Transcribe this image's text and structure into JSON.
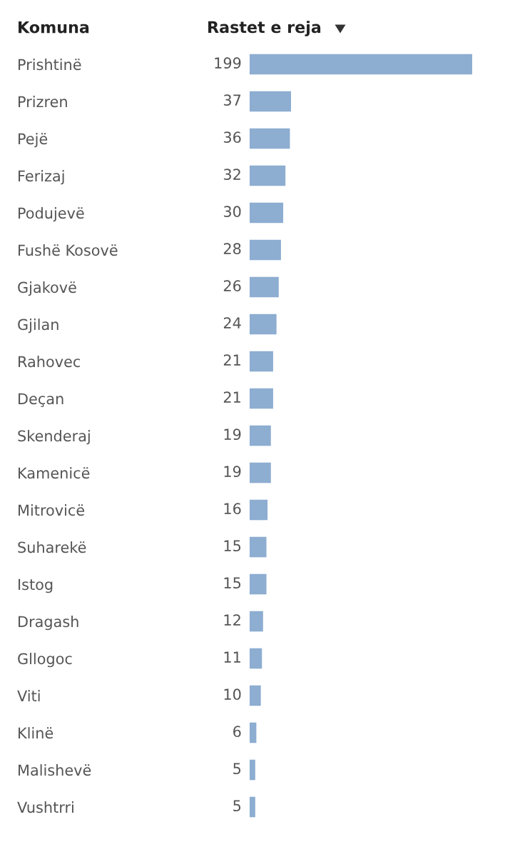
{
  "chart_data": {
    "type": "bar",
    "orientation": "horizontal",
    "ylabel": "Komuna",
    "xlabel": "Rastet e reja",
    "categories": [
      "Prishtinë",
      "Prizren",
      "Pejë",
      "Ferizaj",
      "Podujevë",
      "Fushë Kosovë",
      "Gjakovë",
      "Gjilan",
      "Rahovec",
      "Deçan",
      "Skenderaj",
      "Kamenicë",
      "Mitrovicë",
      "Suharekë",
      "Istog",
      "Dragash",
      "Gllogoc",
      "Viti",
      "Klinë",
      "Malishevë",
      "Vushtrri"
    ],
    "values": [
      199,
      37,
      36,
      32,
      30,
      28,
      26,
      24,
      21,
      21,
      19,
      19,
      16,
      15,
      15,
      12,
      11,
      10,
      6,
      5,
      5
    ],
    "color": "#8dadd1",
    "data_labels": true,
    "tick_labels": "y"
  }
}
